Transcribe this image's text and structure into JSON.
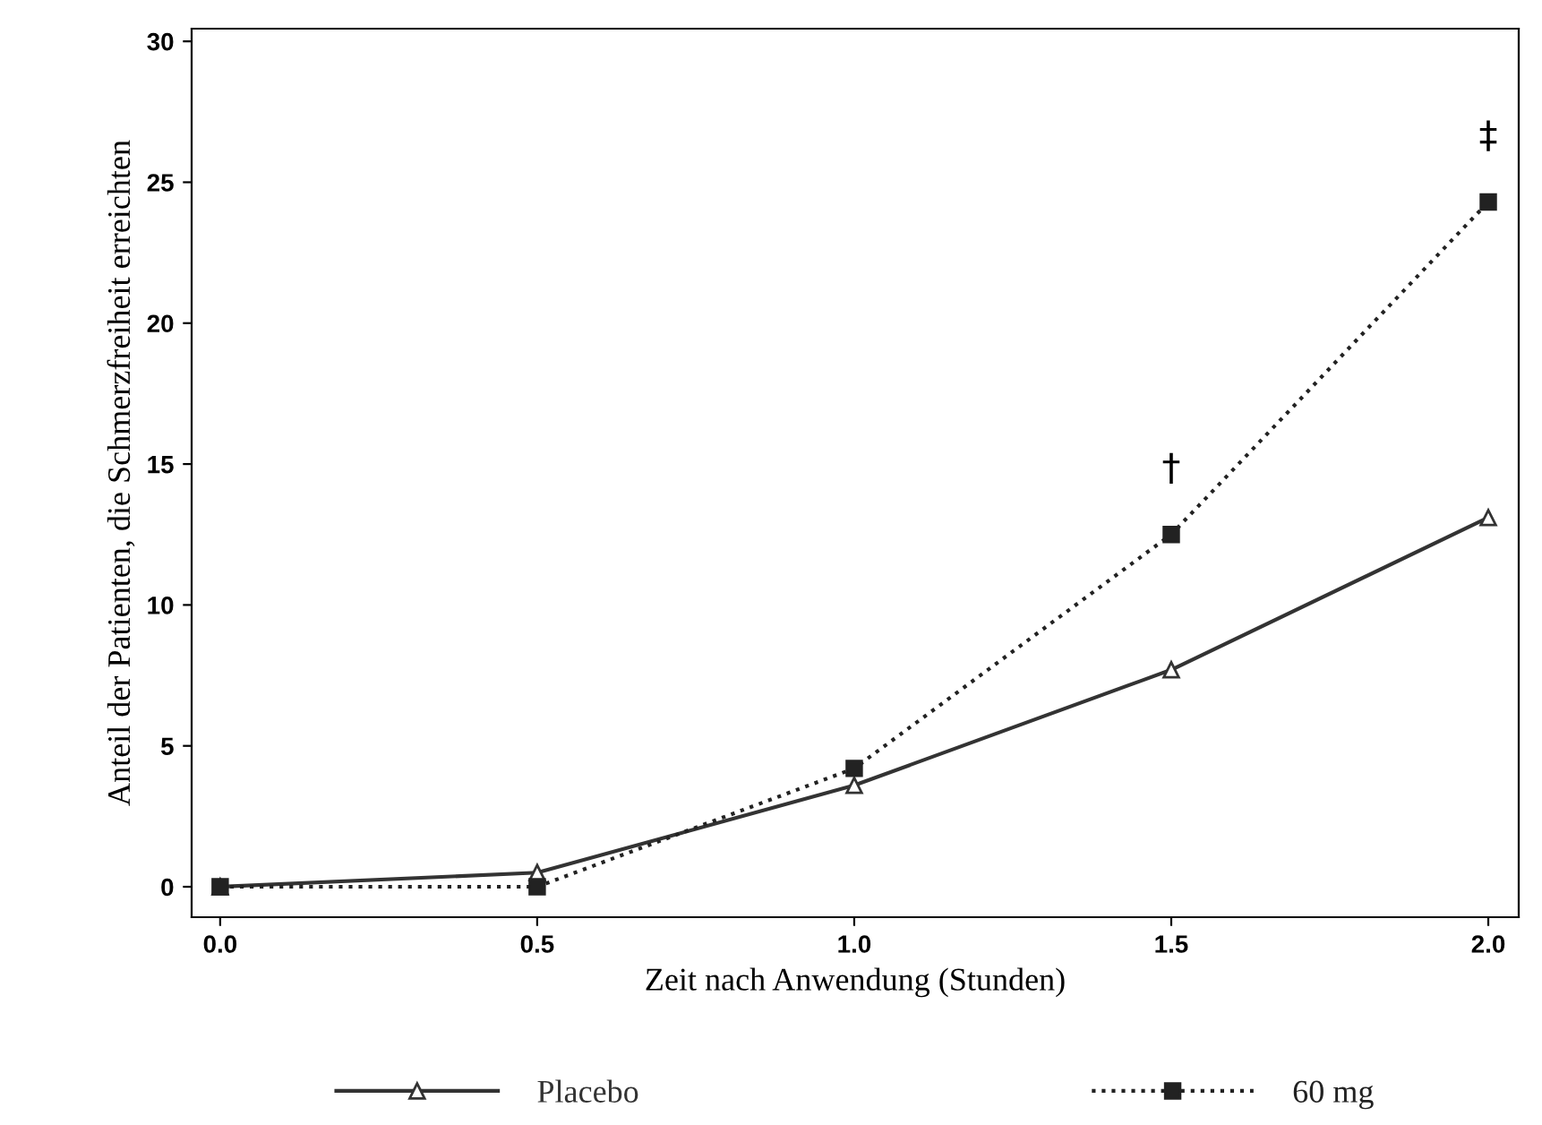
{
  "chart_data": {
    "type": "line",
    "xlabel": "Zeit nach Anwendung (Stunden)",
    "ylabel": "Anteil der Patienten, die Schmerzfreiheit erreichten",
    "x": [
      0.0,
      0.5,
      1.0,
      1.5,
      2.0
    ],
    "series": [
      {
        "name": "Placebo",
        "color": "#333333",
        "values": [
          0,
          0.5,
          3.6,
          7.7,
          13.1
        ],
        "marker": "triangle",
        "line_style": "solid"
      },
      {
        "name": "60 mg",
        "color": "#222222",
        "values": [
          0,
          0,
          4.2,
          12.5,
          24.3
        ],
        "marker": "square",
        "line_style": "dotted"
      }
    ],
    "annotations": [
      {
        "text": "†",
        "x": 1.5,
        "y": 12.5
      },
      {
        "text": "‡",
        "x": 2.0,
        "y": 24.3
      }
    ],
    "xlim": [
      -0.045,
      2.048
    ],
    "ylim": [
      -1.08,
      30.45
    ],
    "xticks": [
      {
        "value": 0,
        "label": "0.0"
      },
      {
        "value": 0.5,
        "label": "0.5"
      },
      {
        "value": 1,
        "label": "1.0"
      },
      {
        "value": 1.5,
        "label": "1.5"
      },
      {
        "value": 2,
        "label": "2.0"
      }
    ],
    "yticks": [
      0,
      5,
      10,
      15,
      20,
      25,
      30
    ],
    "grid": false,
    "legend": "bottom"
  }
}
